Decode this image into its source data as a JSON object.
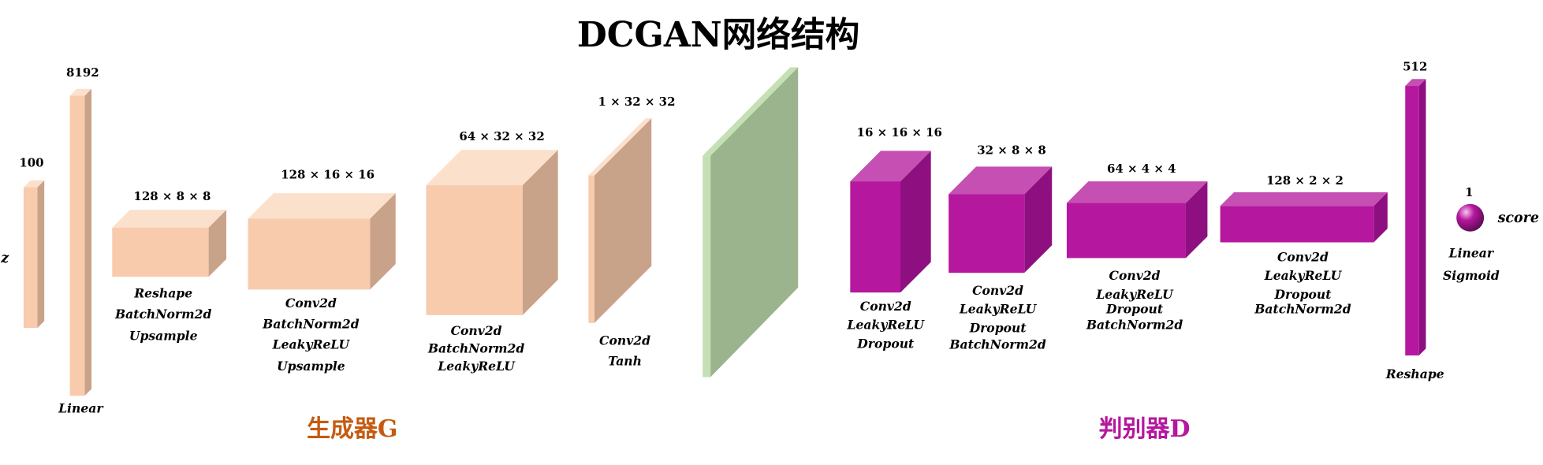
{
  "title": "DCGAN网络结构",
  "input_label": "z",
  "output_label": "score",
  "generator": {
    "label": "生成器G",
    "blocks": [
      {
        "size": "100"
      },
      {
        "size": "8192",
        "ops": [
          "Linear"
        ]
      },
      {
        "size": "128 × 8 × 8",
        "ops": [
          "Reshape",
          "BatchNorm2d",
          "Upsample"
        ]
      },
      {
        "size": "128 × 16 × 16",
        "ops": [
          "Conv2d",
          "BatchNorm2d",
          "LeakyReLU",
          "Upsample"
        ]
      },
      {
        "size": "64 × 32 × 32",
        "ops": [
          "Conv2d",
          "BatchNorm2d",
          "LeakyReLU"
        ]
      },
      {
        "size": "1 × 32 × 32",
        "ops": [
          "Conv2d",
          "Tanh"
        ]
      }
    ]
  },
  "discriminator": {
    "label": "判别器D",
    "blocks": [
      {
        "size": "16 × 16 × 16",
        "ops": [
          "Conv2d",
          "LeakyReLU",
          "Dropout"
        ]
      },
      {
        "size": "32 × 8 × 8",
        "ops": [
          "Conv2d",
          "LeakyReLU",
          "Dropout",
          "BatchNorm2d"
        ]
      },
      {
        "size": "64 × 4 × 4",
        "ops": [
          "Conv2d",
          "LeakyReLU",
          "Dropout",
          "BatchNorm2d"
        ]
      },
      {
        "size": "128 × 2 × 2",
        "ops": [
          "Conv2d",
          "LeakyReLU",
          "Dropout",
          "BatchNorm2d"
        ]
      },
      {
        "size": "512",
        "ops": [
          "Reshape"
        ]
      },
      {
        "size": "1",
        "ops": [
          "Linear",
          "Sigmoid"
        ]
      }
    ]
  }
}
